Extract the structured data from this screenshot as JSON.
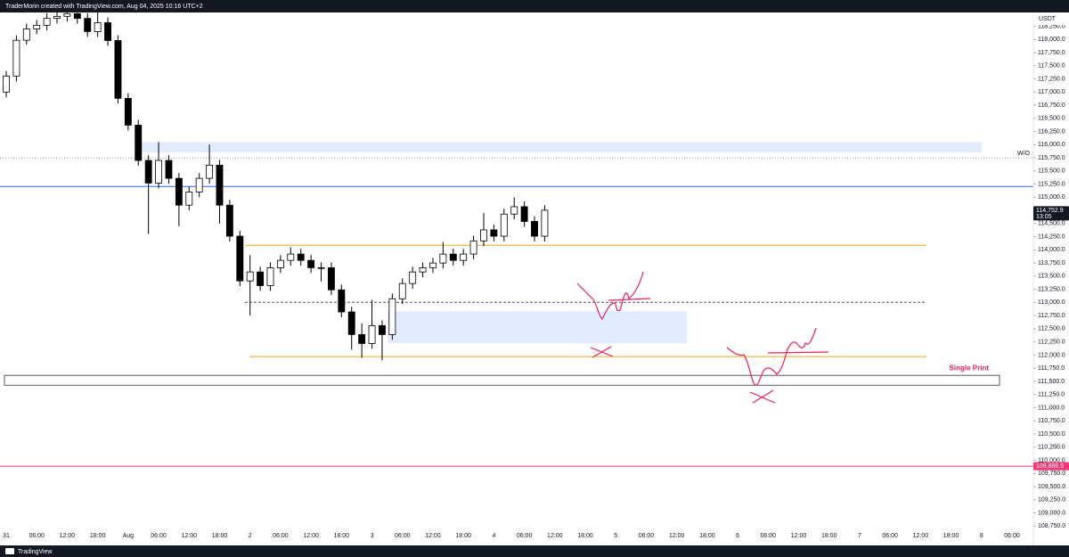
{
  "chart_data": {
    "type": "candlestick",
    "title": "TraderMorin created with TradingView.com, Aug 04, 2025 10:16 UTC+2",
    "currency": "USDT",
    "footer": "TradingView",
    "up_color": "#ffffff",
    "down_color": "#000000",
    "grid": false,
    "ylim": [
      108500,
      118750
    ],
    "yticks": [
      {
        "value": 108750,
        "label": "108,750.0"
      },
      {
        "value": 109000,
        "label": "109,000.0"
      },
      {
        "value": 109250,
        "label": "109,250.0"
      },
      {
        "value": 109500,
        "label": "109,500.0"
      },
      {
        "value": 109750,
        "label": "109,750.0"
      },
      {
        "value": 110000,
        "label": "110,000.0"
      },
      {
        "value": 110250,
        "label": "110,250.0"
      },
      {
        "value": 110500,
        "label": "110,500.0"
      },
      {
        "value": 110750,
        "label": "110,750.0"
      },
      {
        "value": 111000,
        "label": "111,000.0"
      },
      {
        "value": 111250,
        "label": "111,250.0"
      },
      {
        "value": 111500,
        "label": "111,500.0"
      },
      {
        "value": 111750,
        "label": "111,750.0"
      },
      {
        "value": 112000,
        "label": "112,000.0"
      },
      {
        "value": 112250,
        "label": "112,250.0"
      },
      {
        "value": 112500,
        "label": "112,500.0"
      },
      {
        "value": 112750,
        "label": "112,750.0"
      },
      {
        "value": 113000,
        "label": "113,000.0"
      },
      {
        "value": 113250,
        "label": "113,250.0"
      },
      {
        "value": 113500,
        "label": "113,500.0"
      },
      {
        "value": 113750,
        "label": "113,750.0"
      },
      {
        "value": 114000,
        "label": "114,000.0"
      },
      {
        "value": 114250,
        "label": "114,250.0"
      },
      {
        "value": 114500,
        "label": "114,500.0"
      },
      {
        "value": 114750,
        "label": "114,750.0"
      },
      {
        "value": 115000,
        "label": "115,000.0"
      },
      {
        "value": 115250,
        "label": "115,250.0"
      },
      {
        "value": 115500,
        "label": "115,500.0"
      },
      {
        "value": 115750,
        "label": "115,750.0"
      },
      {
        "value": 116000,
        "label": "116,000.0"
      },
      {
        "value": 116250,
        "label": "116,250.0"
      },
      {
        "value": 116500,
        "label": "116,500.0"
      },
      {
        "value": 116750,
        "label": "116,750.0"
      },
      {
        "value": 117000,
        "label": "117,000.0"
      },
      {
        "value": 117250,
        "label": "117,250.0"
      },
      {
        "value": 117500,
        "label": "117,500.0"
      },
      {
        "value": 117750,
        "label": "117,750.0"
      },
      {
        "value": 118000,
        "label": "118,000.0"
      },
      {
        "value": 118250,
        "label": "118,250.0"
      }
    ],
    "categories": [
      "31",
      null,
      null,
      "06:00",
      null,
      null,
      "12:00",
      null,
      null,
      "18:00",
      null,
      null,
      "Aug",
      null,
      null,
      "06:00",
      null,
      null,
      "12:00",
      null,
      null,
      "18:00",
      null,
      null,
      "2",
      null,
      null,
      "06:00",
      null,
      null,
      "12:00",
      null,
      null,
      "18:00",
      null,
      null,
      "3",
      null,
      null,
      "06:00",
      null,
      null,
      "12:00",
      null,
      null,
      "18:00",
      null,
      null,
      "4",
      null,
      null,
      "06:00",
      null,
      null,
      "12:00",
      null,
      null,
      "18:00",
      null,
      null,
      "5",
      null,
      null,
      "06:00",
      null,
      null,
      "12:00",
      null,
      null,
      "18:00",
      null,
      null,
      "6",
      null,
      null,
      "06:00",
      null,
      null,
      "12:00",
      null,
      null,
      "18:00",
      null,
      null,
      "7",
      null,
      null,
      "06:00",
      null,
      null,
      "12:00",
      null,
      null,
      "18:00",
      null,
      null,
      "8",
      null,
      null,
      "06:00"
    ],
    "open": [
      117000,
      117305,
      117985,
      118200,
      118270,
      118400,
      118440,
      118490,
      118400,
      118150,
      118320,
      117980,
      116880,
      116370,
      115700,
      115270,
      115700,
      115360,
      114850,
      115100,
      115360,
      115610,
      114850,
      114260,
      113410,
      113580,
      113320,
      113660,
      113800,
      113920,
      113800,
      113660,
      113660,
      113240,
      112820,
      112390,
      112220,
      112560,
      112390,
      113070,
      113360,
      113580,
      113660,
      113750,
      113920,
      113800,
      113920,
      114170,
      114380,
      114260,
      114680,
      114820,
      114540,
      114260,
      null,
      null,
      null,
      null,
      null,
      null,
      null,
      null,
      null,
      null,
      null,
      null,
      null,
      null,
      null,
      null,
      null,
      null,
      null,
      null,
      null,
      null,
      null,
      null,
      null,
      null,
      null,
      null,
      null,
      null,
      null,
      null,
      null,
      null,
      null,
      null,
      null,
      null,
      null,
      null,
      null,
      null,
      null,
      null,
      null,
      null
    ],
    "high": [
      117400,
      118080,
      118300,
      118370,
      118500,
      118540,
      118650,
      118590,
      118500,
      118600,
      118420,
      118080,
      116980,
      116470,
      115800,
      116050,
      115800,
      115460,
      115200,
      115460,
      116000,
      115710,
      114950,
      114360,
      113900,
      113680,
      113760,
      113900,
      114050,
      114020,
      113900,
      113760,
      113760,
      113340,
      112920,
      112600,
      113050,
      112660,
      113170,
      113460,
      113680,
      113760,
      113850,
      114150,
      114020,
      114020,
      114270,
      114700,
      114480,
      114780,
      115000,
      114920,
      114640,
      114850,
      null,
      null,
      null,
      null,
      null,
      null,
      null,
      null,
      null,
      null,
      null,
      null,
      null,
      null,
      null,
      null,
      null,
      null,
      null,
      null,
      null,
      null,
      null,
      null,
      null,
      null,
      null,
      null,
      null,
      null,
      null,
      null,
      null,
      null,
      null,
      null,
      null,
      null,
      null,
      null,
      null,
      null,
      null,
      null,
      null,
      null
    ],
    "low": [
      116900,
      117200,
      117900,
      118100,
      118170,
      118300,
      118340,
      118300,
      118050,
      118050,
      117880,
      116780,
      116270,
      115600,
      114300,
      115170,
      115260,
      114450,
      114750,
      115000,
      115260,
      114500,
      114160,
      113310,
      112750,
      113220,
      113220,
      113560,
      113700,
      113700,
      113560,
      113400,
      113140,
      112720,
      112100,
      111950,
      112120,
      111900,
      112290,
      112970,
      113260,
      113480,
      113560,
      113650,
      113700,
      113700,
      113820,
      114070,
      114160,
      114160,
      114580,
      114440,
      114160,
      114160,
      null,
      null,
      null,
      null,
      null,
      null,
      null,
      null,
      null,
      null,
      null,
      null,
      null,
      null,
      null,
      null,
      null,
      null,
      null,
      null,
      null,
      null,
      null,
      null,
      null,
      null,
      null,
      null,
      null,
      null,
      null,
      null,
      null,
      null,
      null,
      null,
      null,
      null,
      null,
      null,
      null,
      null,
      null,
      null,
      null,
      null
    ],
    "close": [
      117305,
      117985,
      118200,
      118270,
      118400,
      118440,
      118490,
      118400,
      118150,
      118320,
      117980,
      116880,
      116370,
      115700,
      115270,
      115700,
      115360,
      114850,
      115100,
      115360,
      115610,
      114850,
      114260,
      113410,
      113580,
      113320,
      113660,
      113800,
      113920,
      113800,
      113660,
      113660,
      113240,
      112820,
      112390,
      112220,
      112560,
      112390,
      113070,
      113360,
      113580,
      113660,
      113750,
      113920,
      113800,
      113920,
      114170,
      114380,
      114260,
      114680,
      114820,
      114540,
      114260,
      114752.9,
      null,
      null,
      null,
      null,
      null,
      null,
      null,
      null,
      null,
      null,
      null,
      null,
      null,
      null,
      null,
      null,
      null,
      null,
      null,
      null,
      null,
      null,
      null,
      null,
      null,
      null,
      null,
      null,
      null,
      null,
      null,
      null,
      null,
      null,
      null,
      null,
      null,
      null,
      null,
      null,
      null,
      null,
      null,
      null,
      null,
      null
    ],
    "levels": [
      {
        "kind": "zone",
        "from": 115850,
        "to": 116050,
        "color": "#2962ff"
      },
      {
        "kind": "line",
        "value": 115747,
        "color": "#9e9e9e",
        "style": "dotted",
        "label": "W/O"
      },
      {
        "kind": "line",
        "value": 115205,
        "color": "#2962ff",
        "style": "solid"
      },
      {
        "kind": "line",
        "value": 114087,
        "color": "#f5a623",
        "style": "solid"
      },
      {
        "kind": "line",
        "value": 113003,
        "color": "#555555",
        "style": "dashed"
      },
      {
        "kind": "zone",
        "from": 112224,
        "to": 112833,
        "color": "#2962ff"
      },
      {
        "kind": "line",
        "value": 111970,
        "color": "#f5a623",
        "style": "solid"
      },
      {
        "kind": "box",
        "from": 111427,
        "to": 111614,
        "color": "#333333",
        "label": "Single Print",
        "label_color": "#e91e63"
      },
      {
        "kind": "line",
        "value": 109886.5,
        "color": "#f23674",
        "style": "solid"
      }
    ],
    "price_labels": [
      {
        "value": 114752.9,
        "label": "114,752.9",
        "countdown": "13:05",
        "color": "#131722"
      },
      {
        "value": 109886.5,
        "label": "109,886.5",
        "color": "#f23674"
      }
    ]
  }
}
